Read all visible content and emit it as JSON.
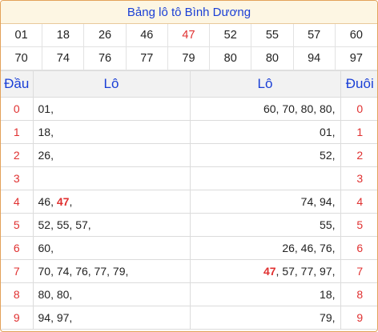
{
  "title": "Bảng lô tô Bình Dương",
  "numbers": [
    {
      "v": "01",
      "red": false
    },
    {
      "v": "18",
      "red": false
    },
    {
      "v": "26",
      "red": false
    },
    {
      "v": "46",
      "red": false
    },
    {
      "v": "47",
      "red": true
    },
    {
      "v": "52",
      "red": false
    },
    {
      "v": "55",
      "red": false
    },
    {
      "v": "57",
      "red": false
    },
    {
      "v": "60",
      "red": false
    },
    {
      "v": "70",
      "red": false
    },
    {
      "v": "74",
      "red": false
    },
    {
      "v": "76",
      "red": false
    },
    {
      "v": "77",
      "red": false
    },
    {
      "v": "79",
      "red": false
    },
    {
      "v": "80",
      "red": false
    },
    {
      "v": "80",
      "red": false
    },
    {
      "v": "94",
      "red": false
    },
    {
      "v": "97",
      "red": false
    }
  ],
  "headers": {
    "dau": "Đầu",
    "lo_left": "Lô",
    "lo_right": "Lô",
    "duoi": "Đuôi"
  },
  "rows": [
    {
      "digit": "0",
      "left": [
        {
          "t": "01,"
        }
      ],
      "right": [
        {
          "t": "60, 70, 80, 80,"
        }
      ]
    },
    {
      "digit": "1",
      "left": [
        {
          "t": "18,"
        }
      ],
      "right": [
        {
          "t": "01,"
        }
      ]
    },
    {
      "digit": "2",
      "left": [
        {
          "t": "26,"
        }
      ],
      "right": [
        {
          "t": "52,"
        }
      ]
    },
    {
      "digit": "3",
      "left": [],
      "right": []
    },
    {
      "digit": "4",
      "left": [
        {
          "t": "46, "
        },
        {
          "t": "47",
          "hl": true
        },
        {
          "t": ","
        }
      ],
      "right": [
        {
          "t": "74, 94,"
        }
      ]
    },
    {
      "digit": "5",
      "left": [
        {
          "t": "52, 55, 57,"
        }
      ],
      "right": [
        {
          "t": "55,"
        }
      ]
    },
    {
      "digit": "6",
      "left": [
        {
          "t": "60,"
        }
      ],
      "right": [
        {
          "t": "26, 46, 76,"
        }
      ]
    },
    {
      "digit": "7",
      "left": [
        {
          "t": "70, 74, 76, 77, 79,"
        }
      ],
      "right": [
        {
          "t": "47",
          "hl": true
        },
        {
          "t": ", 57, 77, 97,"
        }
      ]
    },
    {
      "digit": "8",
      "left": [
        {
          "t": "80, 80,"
        }
      ],
      "right": [
        {
          "t": "18,"
        }
      ]
    },
    {
      "digit": "9",
      "left": [
        {
          "t": "94, 97,"
        }
      ],
      "right": [
        {
          "t": "79,"
        }
      ]
    }
  ],
  "colors": {
    "accent": "#1a3fd6",
    "highlight": "#e03030",
    "border": "#e3a25a"
  }
}
